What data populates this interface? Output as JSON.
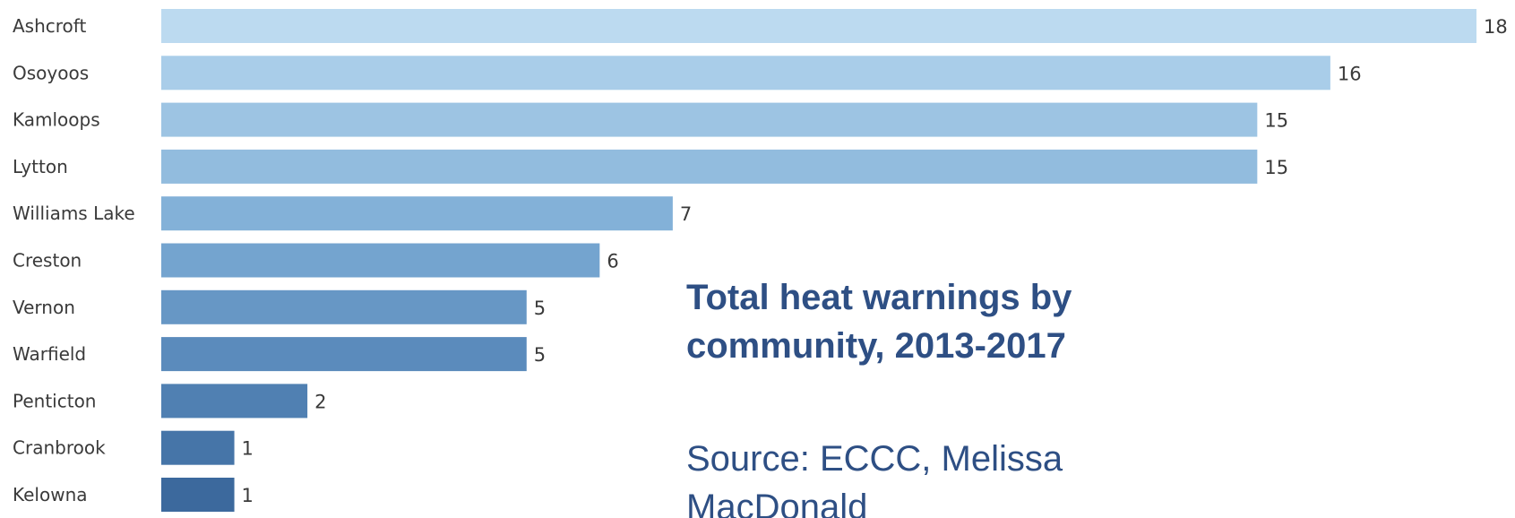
{
  "chart_data": {
    "type": "bar",
    "orientation": "horizontal",
    "title": "Total heat warnings by community, 2013-2017",
    "source": "Source:  ECCC, Melissa MacDonald",
    "categories": [
      "Ashcroft",
      "Osoyoos",
      "Kamloops",
      "Lytton",
      "Williams Lake",
      "Creston",
      "Vernon",
      "Warfield",
      "Penticton",
      "Cranbrook",
      "Kelowna"
    ],
    "values": [
      18,
      16,
      15,
      15,
      7,
      6,
      5,
      5,
      2,
      1,
      1
    ],
    "xlim": [
      0,
      18
    ],
    "grid": false,
    "legend": "none",
    "bar_colors": [
      "#bcdaf0",
      "#a9cde9",
      "#9dc4e3",
      "#92bcde",
      "#83b1d8",
      "#74a4cf",
      "#6797c5",
      "#5b8bbc",
      "#5080b2",
      "#4675a8",
      "#3c699d"
    ],
    "title_color": "#2e4f84"
  }
}
